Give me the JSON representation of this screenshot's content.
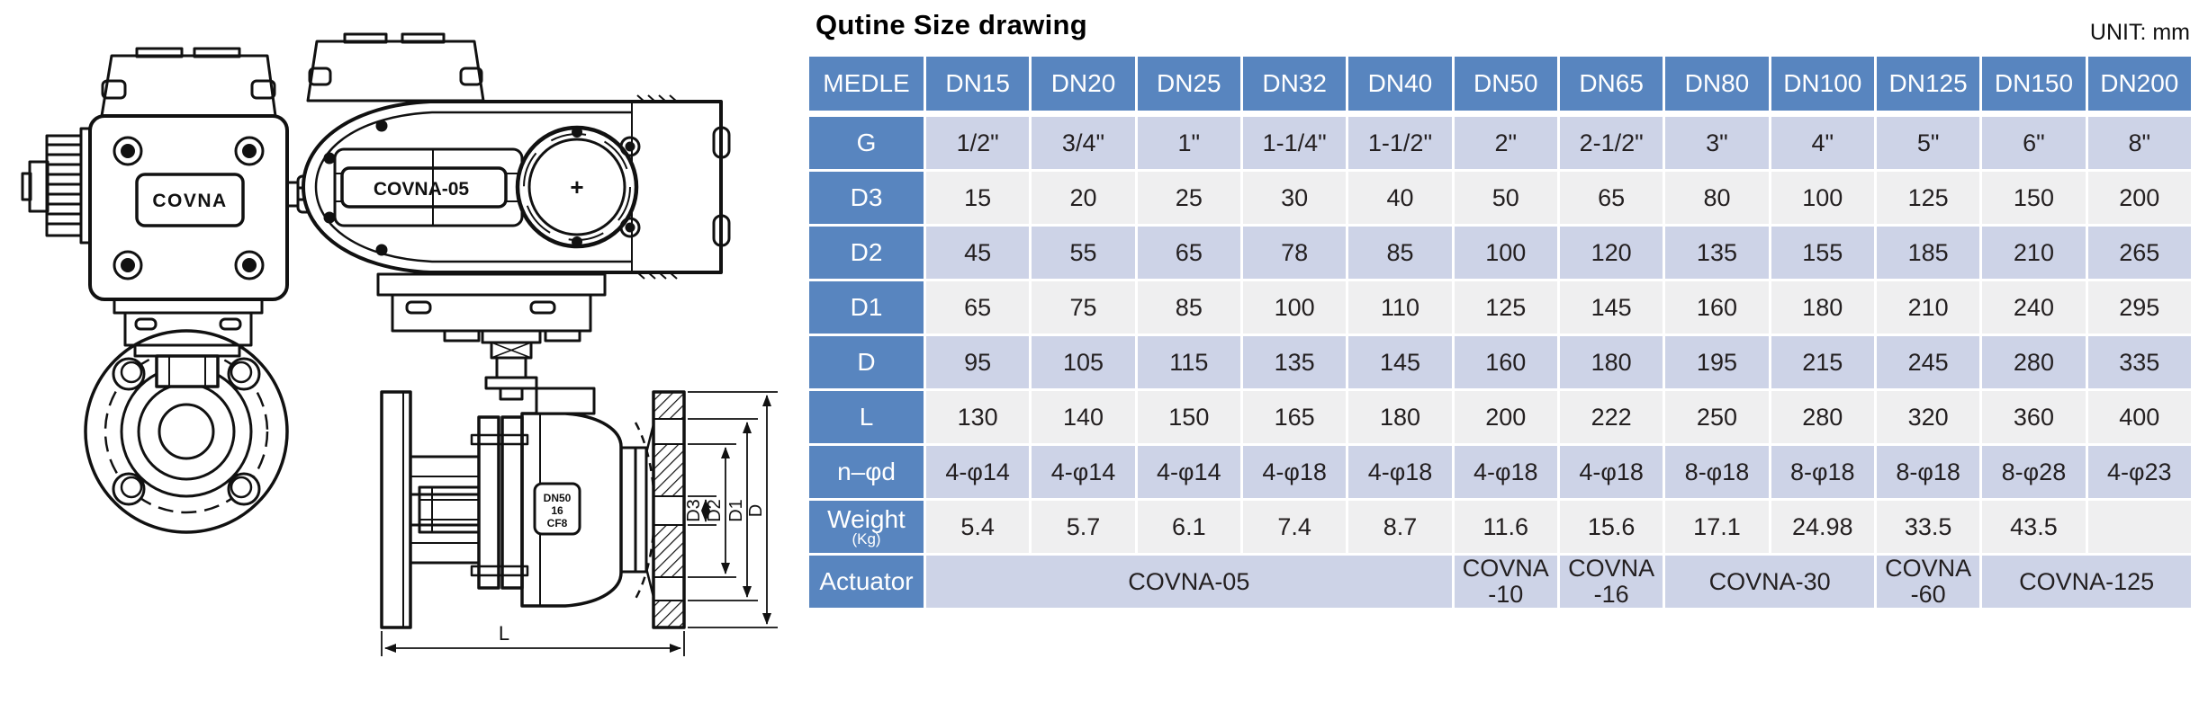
{
  "title": "Qutine Size drawing",
  "unit_label": "UNIT: mm",
  "colors": {
    "header_blue": "#5885bf",
    "row_lavender": "#cdd3e7",
    "row_gray": "#efeff0",
    "line_black": "#111111"
  },
  "drawing": {
    "brand_label": "COVNA",
    "actuator_model_label": "COVNA-05",
    "window_plus": "+",
    "nameplate_line1": "DN50",
    "nameplate_line2": "16",
    "nameplate_line3": "CF8",
    "dim_d3": "D3",
    "dim_d2": "D2",
    "dim_d1": "D1",
    "dim_d": "D",
    "dim_l": "L"
  },
  "table": {
    "header": [
      "MEDLE",
      "DN15",
      "DN20",
      "DN25",
      "DN32",
      "DN40",
      "DN50",
      "DN65",
      "DN80",
      "DN100",
      "DN125",
      "DN150",
      "DN200"
    ],
    "rows": [
      {
        "label": "G",
        "values": [
          "1/2\"",
          "3/4\"",
          "1\"",
          "1-1/4\"",
          "1-1/2\"",
          "2\"",
          "2-1/2\"",
          "3\"",
          "4\"",
          "5\"",
          "6\"",
          "8\""
        ]
      },
      {
        "label": "D3",
        "values": [
          "15",
          "20",
          "25",
          "30",
          "40",
          "50",
          "65",
          "80",
          "100",
          "125",
          "150",
          "200"
        ]
      },
      {
        "label": "D2",
        "values": [
          "45",
          "55",
          "65",
          "78",
          "85",
          "100",
          "120",
          "135",
          "155",
          "185",
          "210",
          "265"
        ]
      },
      {
        "label": "D1",
        "values": [
          "65",
          "75",
          "85",
          "100",
          "110",
          "125",
          "145",
          "160",
          "180",
          "210",
          "240",
          "295"
        ]
      },
      {
        "label": "D",
        "values": [
          "95",
          "105",
          "115",
          "135",
          "145",
          "160",
          "180",
          "195",
          "215",
          "245",
          "280",
          "335"
        ]
      },
      {
        "label": "L",
        "values": [
          "130",
          "140",
          "150",
          "165",
          "180",
          "200",
          "222",
          "250",
          "280",
          "320",
          "360",
          "400"
        ]
      },
      {
        "label": "n–φd",
        "values": [
          "4-φ14",
          "4-φ14",
          "4-φ14",
          "4-φ18",
          "4-φ18",
          "4-φ18",
          "4-φ18",
          "8-φ18",
          "8-φ18",
          "8-φ18",
          "8-φ28",
          "4-φ23"
        ]
      },
      {
        "label": "Weight",
        "sublabel": "(Kg)",
        "values": [
          "5.4",
          "5.7",
          "6.1",
          "7.4",
          "8.7",
          "11.6",
          "15.6",
          "17.1",
          "24.98",
          "33.5",
          "43.5",
          ""
        ]
      }
    ],
    "actuator_row": {
      "label": "Actuator",
      "cells": [
        {
          "lines": [
            "COVNA-05"
          ],
          "span": 5
        },
        {
          "lines": [
            "COVNA",
            "-10"
          ],
          "span": 1
        },
        {
          "lines": [
            "COVNA",
            "-16"
          ],
          "span": 1
        },
        {
          "lines": [
            "COVNA-30"
          ],
          "span": 2
        },
        {
          "lines": [
            "COVNA",
            "-60"
          ],
          "span": 1
        },
        {
          "lines": [
            "COVNA-125"
          ],
          "span": 2
        }
      ]
    }
  }
}
